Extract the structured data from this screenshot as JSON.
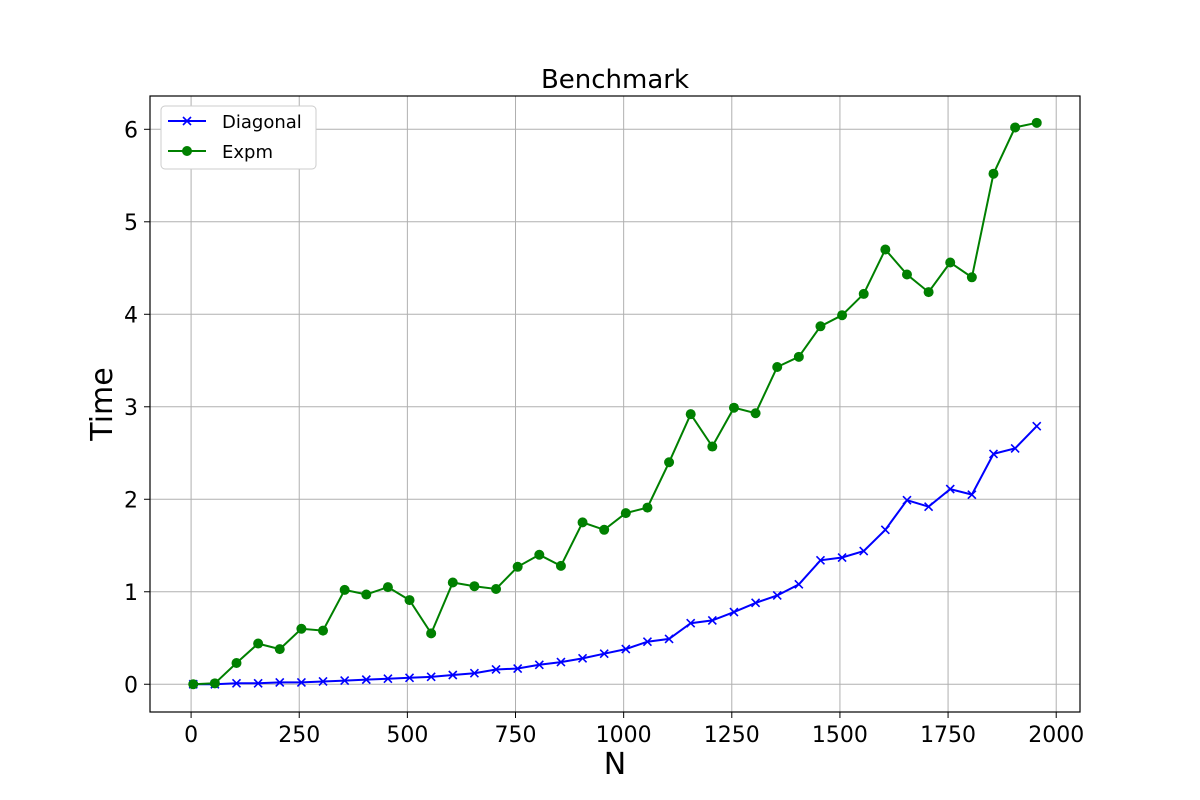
{
  "chart_data": {
    "type": "line",
    "title": "Benchmark",
    "xlabel": "N",
    "ylabel": "Time",
    "xlim": [
      -95,
      2055
    ],
    "ylim": [
      -0.3,
      6.36
    ],
    "xticks": [
      0,
      250,
      500,
      750,
      1000,
      1250,
      1500,
      1750,
      2000
    ],
    "yticks": [
      0,
      1,
      2,
      3,
      4,
      5,
      6
    ],
    "grid": true,
    "legend": "top-left",
    "series": [
      {
        "name": "Diagonal",
        "color": "#0000ff",
        "marker": "x",
        "x": [
          5,
          55,
          105,
          155,
          205,
          255,
          305,
          355,
          405,
          455,
          505,
          555,
          605,
          655,
          705,
          755,
          805,
          855,
          905,
          955,
          1005,
          1055,
          1105,
          1155,
          1205,
          1255,
          1305,
          1355,
          1405,
          1455,
          1505,
          1555,
          1605,
          1655,
          1705,
          1755,
          1805,
          1855,
          1905,
          1955
        ],
        "y": [
          0.0,
          0.0,
          0.01,
          0.01,
          0.02,
          0.02,
          0.03,
          0.04,
          0.05,
          0.06,
          0.07,
          0.08,
          0.1,
          0.12,
          0.16,
          0.17,
          0.21,
          0.24,
          0.28,
          0.33,
          0.38,
          0.46,
          0.49,
          0.66,
          0.69,
          0.78,
          0.88,
          0.96,
          1.08,
          1.34,
          1.37,
          1.44,
          1.67,
          1.99,
          1.92,
          2.11,
          2.05,
          2.49,
          2.55,
          2.79
        ]
      },
      {
        "name": "Expm",
        "color": "#008000",
        "marker": "o",
        "x": [
          5,
          55,
          105,
          155,
          205,
          255,
          305,
          355,
          405,
          455,
          505,
          555,
          605,
          655,
          705,
          755,
          805,
          855,
          905,
          955,
          1005,
          1055,
          1105,
          1155,
          1205,
          1255,
          1305,
          1355,
          1405,
          1455,
          1505,
          1555,
          1605,
          1655,
          1705,
          1755,
          1805,
          1855,
          1905,
          1955
        ],
        "y": [
          0.0,
          0.01,
          0.23,
          0.44,
          0.38,
          0.6,
          0.58,
          1.02,
          0.97,
          1.05,
          0.91,
          0.55,
          1.1,
          1.06,
          1.03,
          1.27,
          1.4,
          1.28,
          1.75,
          1.67,
          1.85,
          1.91,
          2.4,
          2.92,
          2.57,
          2.99,
          2.93,
          3.43,
          3.54,
          3.87,
          3.99,
          4.22,
          4.7,
          4.43,
          4.24,
          4.56,
          4.4,
          5.52,
          6.02,
          6.07
        ]
      }
    ]
  }
}
